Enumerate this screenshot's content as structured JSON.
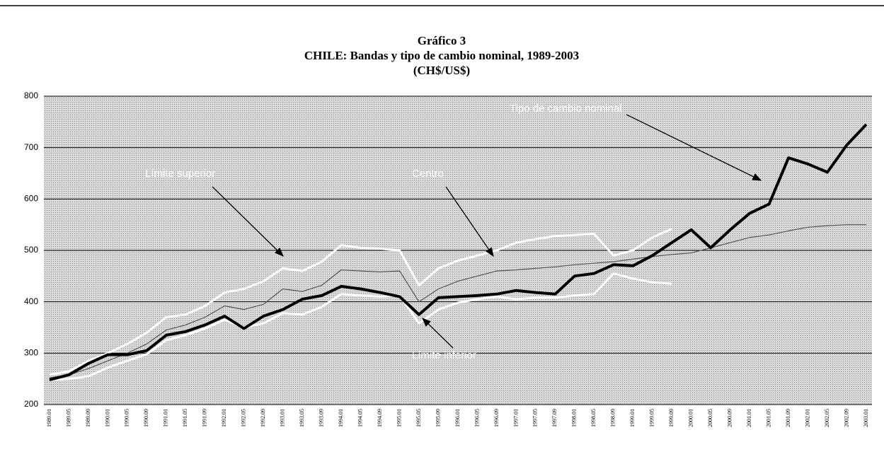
{
  "chart_data": {
    "type": "line",
    "title": "Gráfico 3",
    "subtitle": "CHILE: Bandas y tipo de cambio nominal, 1989-2003",
    "units": "(CH$/US$)",
    "categories": [
      "1989.01",
      "1989.05",
      "1989.09",
      "1990.01",
      "1990.05",
      "1990.09",
      "1991.01",
      "1991.05",
      "1991.09",
      "1992.01",
      "1992.05",
      "1992.09",
      "1993.01",
      "1993.05",
      "1993.09",
      "1994.01",
      "1994.05",
      "1994.09",
      "1995.01",
      "1995.05",
      "1995.09",
      "1996.01",
      "1996.05",
      "1996.09",
      "1997.01",
      "1997.05",
      "1997.09",
      "1998.01",
      "1998.05",
      "1998.09",
      "1999.01",
      "1999.05",
      "1999.09",
      "2000.01",
      "2000.05",
      "2000.09",
      "2001.01",
      "2001.05",
      "2001.09",
      "2002.01",
      "2002.05",
      "2002.09",
      "2003.01"
    ],
    "series": [
      {
        "name": "Tipo de cambio nominal",
        "color": "#000000",
        "values": [
          248,
          258,
          280,
          297,
          297,
          305,
          335,
          342,
          355,
          372,
          348,
          372,
          385,
          405,
          412,
          430,
          425,
          418,
          410,
          375,
          408,
          410,
          412,
          415,
          422,
          418,
          415,
          450,
          455,
          472,
          470,
          490,
          515,
          540,
          505,
          540,
          572,
          590,
          680,
          668,
          652,
          705,
          745
        ]
      },
      {
        "name": "Centro",
        "color": "#555555",
        "values": [
          252,
          258,
          270,
          285,
          300,
          318,
          345,
          355,
          370,
          392,
          385,
          395,
          425,
          420,
          432,
          462,
          460,
          458,
          460,
          400,
          425,
          440,
          450,
          460,
          462,
          465,
          468,
          472,
          475,
          478,
          483,
          488,
          492,
          495,
          505,
          515,
          525,
          530,
          538,
          545,
          548,
          550,
          550
        ]
      },
      {
        "name": "Límite superior",
        "color": "#ffffff",
        "values": [
          258,
          265,
          285,
          300,
          318,
          340,
          370,
          375,
          392,
          418,
          425,
          440,
          465,
          460,
          478,
          510,
          505,
          503,
          500,
          432,
          465,
          480,
          490,
          500,
          515,
          522,
          528,
          530,
          532,
          490,
          500,
          525,
          542,
          null,
          null,
          null,
          null,
          null,
          null,
          null,
          null,
          null,
          null
        ]
      },
      {
        "name": "Límite inferior",
        "color": "#ffffff",
        "values": [
          248,
          250,
          255,
          272,
          285,
          298,
          325,
          335,
          348,
          365,
          350,
          358,
          378,
          375,
          390,
          415,
          412,
          410,
          412,
          358,
          385,
          398,
          405,
          410,
          405,
          408,
          408,
          412,
          415,
          455,
          445,
          438,
          435,
          null,
          null,
          null,
          null,
          null,
          null,
          null,
          null,
          null,
          null
        ]
      }
    ],
    "ylim": [
      200,
      800
    ],
    "yticks": [
      200,
      300,
      400,
      500,
      600,
      700,
      800
    ],
    "grid": true
  }
}
